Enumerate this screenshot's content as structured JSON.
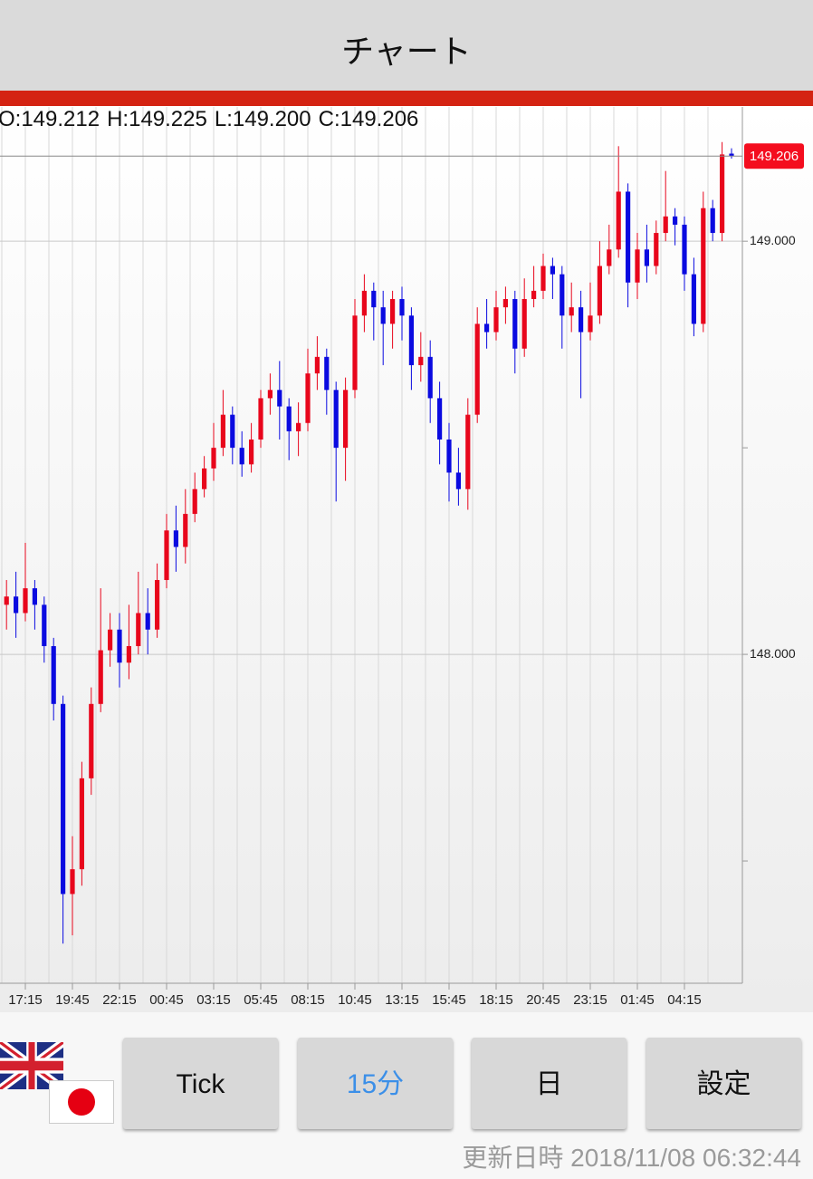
{
  "header": {
    "title": "チャート"
  },
  "chart_data": {
    "type": "candlestick",
    "readout": [
      "O:149.212",
      "H:149.225",
      "L:149.200",
      "C:149.206"
    ],
    "last_price_label": "149.206",
    "categories": [
      null,
      null,
      "17:15",
      null,
      null,
      null,
      null,
      "19:45",
      null,
      null,
      null,
      null,
      "22:15",
      null,
      null,
      null,
      null,
      "00:45",
      null,
      null,
      null,
      null,
      "03:15",
      null,
      null,
      null,
      null,
      "05:45",
      null,
      null,
      null,
      null,
      "08:15",
      null,
      null,
      null,
      null,
      "10:45",
      null,
      null,
      null,
      null,
      "13:15",
      null,
      null,
      null,
      null,
      "15:45",
      null,
      null,
      null,
      null,
      "18:15",
      null,
      null,
      null,
      null,
      "20:45",
      null,
      null,
      null,
      null,
      "23:15",
      null,
      null,
      null,
      null,
      "01:45",
      null,
      null,
      null,
      null,
      "04:15",
      null,
      null,
      null,
      null,
      null
    ],
    "open": [
      148.12,
      148.14,
      148.1,
      148.16,
      148.12,
      148.02,
      147.88,
      147.42,
      147.48,
      147.7,
      147.88,
      148.01,
      148.06,
      147.98,
      148.02,
      148.1,
      148.06,
      148.18,
      148.3,
      148.26,
      148.34,
      148.4,
      148.45,
      148.5,
      148.58,
      148.5,
      148.46,
      148.52,
      148.62,
      148.64,
      148.6,
      148.54,
      148.56,
      148.68,
      148.72,
      148.64,
      148.5,
      148.64,
      148.82,
      148.88,
      148.84,
      148.8,
      148.86,
      148.82,
      148.7,
      148.72,
      148.62,
      148.52,
      148.44,
      148.4,
      148.58,
      148.8,
      148.78,
      148.84,
      148.86,
      148.74,
      148.86,
      148.88,
      148.94,
      148.92,
      148.82,
      148.84,
      148.78,
      148.82,
      148.94,
      148.98,
      149.12,
      148.9,
      148.98,
      148.94,
      149.02,
      149.06,
      149.04,
      148.92,
      148.8,
      149.08,
      149.02,
      149.212
    ],
    "high": [
      148.18,
      148.2,
      148.27,
      148.18,
      148.14,
      148.04,
      147.9,
      147.56,
      147.74,
      147.92,
      148.16,
      148.1,
      148.1,
      148.12,
      148.2,
      148.16,
      148.22,
      148.34,
      148.36,
      148.4,
      148.44,
      148.48,
      148.56,
      148.64,
      148.6,
      148.54,
      148.56,
      148.64,
      148.68,
      148.71,
      148.62,
      148.61,
      148.74,
      148.77,
      148.74,
      148.66,
      148.67,
      148.86,
      148.92,
      148.9,
      148.88,
      148.88,
      148.89,
      148.84,
      148.78,
      148.76,
      148.66,
      148.56,
      148.5,
      148.62,
      148.84,
      148.86,
      148.88,
      148.89,
      148.88,
      148.91,
      148.94,
      148.97,
      148.96,
      148.94,
      148.9,
      148.88,
      148.9,
      149.0,
      149.04,
      149.23,
      149.14,
      149.02,
      149.04,
      149.05,
      149.17,
      149.08,
      149.06,
      148.96,
      149.12,
      149.1,
      149.24,
      149.225
    ],
    "low": [
      148.06,
      148.04,
      148.08,
      148.06,
      147.98,
      147.84,
      147.3,
      147.32,
      147.44,
      147.66,
      147.86,
      147.97,
      147.92,
      147.94,
      148.0,
      148.0,
      148.04,
      148.16,
      148.2,
      148.22,
      148.32,
      148.38,
      148.42,
      148.48,
      148.46,
      148.43,
      148.44,
      148.5,
      148.58,
      148.52,
      148.47,
      148.48,
      148.54,
      148.64,
      148.58,
      148.37,
      148.42,
      148.62,
      148.78,
      148.76,
      148.7,
      148.74,
      148.76,
      148.64,
      148.66,
      148.56,
      148.46,
      148.37,
      148.36,
      148.35,
      148.56,
      148.74,
      148.76,
      148.8,
      148.68,
      148.72,
      148.84,
      148.86,
      148.86,
      148.74,
      148.78,
      148.62,
      148.76,
      148.8,
      148.92,
      148.96,
      148.84,
      148.86,
      148.9,
      148.92,
      149.0,
      148.99,
      148.88,
      148.77,
      148.78,
      149.0,
      149.0,
      149.2
    ],
    "close": [
      148.14,
      148.1,
      148.16,
      148.12,
      148.02,
      147.88,
      147.42,
      147.48,
      147.7,
      147.88,
      148.01,
      148.06,
      147.98,
      148.02,
      148.1,
      148.06,
      148.18,
      148.3,
      148.26,
      148.34,
      148.4,
      148.45,
      148.5,
      148.58,
      148.5,
      148.46,
      148.52,
      148.62,
      148.64,
      148.6,
      148.54,
      148.56,
      148.68,
      148.72,
      148.64,
      148.5,
      148.64,
      148.82,
      148.88,
      148.84,
      148.8,
      148.86,
      148.82,
      148.7,
      148.72,
      148.62,
      148.52,
      148.44,
      148.4,
      148.58,
      148.8,
      148.78,
      148.84,
      148.86,
      148.74,
      148.86,
      148.88,
      148.94,
      148.92,
      148.82,
      148.84,
      148.78,
      148.82,
      148.94,
      148.98,
      149.12,
      148.9,
      148.98,
      148.94,
      149.02,
      149.06,
      149.04,
      148.92,
      148.8,
      149.08,
      149.02,
      149.21,
      149.206
    ],
    "up_color": "#e8061c",
    "down_color": "#0a0ae0",
    "ylim": [
      147.204,
      149.325
    ],
    "yticks": [
      {
        "value": 148,
        "label": "148.000"
      },
      {
        "value": 149,
        "label": "149.000"
      }
    ],
    "minor_yticks": [
      147.5,
      148.5
    ],
    "grid": true
  },
  "buttons": [
    "Tick",
    "15分",
    "日",
    "設定"
  ],
  "footer": {
    "label": "更新日時",
    "timestamp": "2018/11/08 06:32:44"
  }
}
